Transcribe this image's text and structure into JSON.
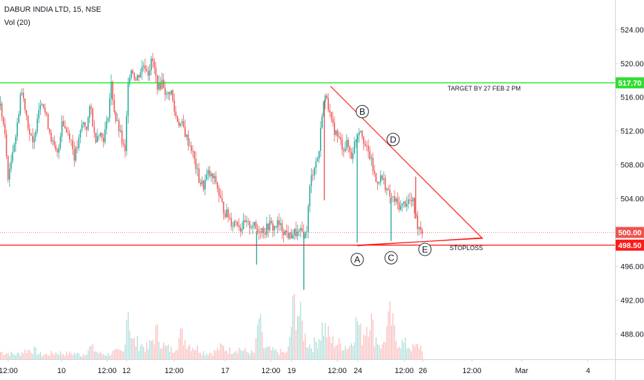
{
  "header": {
    "title": "DABUR INDIA LTD, 15, NSE",
    "volume_label": "Vol (20)"
  },
  "colors": {
    "up": "#26a69a",
    "down": "#ef5350",
    "target_line": "#00e600",
    "stoploss_line": "#ff1a1a",
    "triangle": "#ff1a1a",
    "price_tag_bg": "#ef5350",
    "stoploss_tag_bg": "#ff1a1a",
    "target_tag_bg": "#33dd33",
    "axis_text": "#131722",
    "grid_border": "#d1d4dc"
  },
  "chart_data": {
    "type": "candlestick",
    "y_axis": {
      "ticks": [
        488,
        492,
        496,
        500,
        504,
        508,
        512,
        516,
        520,
        524
      ],
      "range": [
        485,
        527.5
      ],
      "tick_labels": [
        "488.00",
        "492.00",
        "496.00",
        "500.00",
        "504.00",
        "508.00",
        "512.00",
        "516.00",
        "520.00",
        "524.00"
      ]
    },
    "x_axis": {
      "tick_labels": [
        "12:00",
        "10",
        "12:00",
        "12",
        "12:00",
        "17",
        "12:00",
        "19",
        "12:00",
        "24",
        "12:00",
        "26",
        "12:00",
        "Mar",
        "4"
      ]
    },
    "price_path": [
      [
        0,
        515
      ],
      [
        4,
        512
      ],
      [
        8,
        506
      ],
      [
        12,
        510
      ],
      [
        16,
        512
      ],
      [
        20,
        517
      ],
      [
        24,
        515
      ],
      [
        28,
        512
      ],
      [
        32,
        510
      ],
      [
        36,
        514
      ],
      [
        40,
        516
      ],
      [
        44,
        514
      ],
      [
        48,
        512
      ],
      [
        52,
        510
      ],
      [
        56,
        509
      ],
      [
        60,
        513.5
      ],
      [
        64,
        512
      ],
      [
        68,
        511.5
      ],
      [
        72,
        509
      ],
      [
        76,
        510.5
      ],
      [
        80,
        513
      ],
      [
        84,
        512.5
      ],
      [
        88,
        515
      ],
      [
        92,
        511
      ],
      [
        96,
        512
      ],
      [
        100,
        511
      ],
      [
        104,
        513
      ],
      [
        108,
        517.5
      ],
      [
        112,
        513.5
      ],
      [
        116,
        512
      ],
      [
        120,
        510
      ],
      [
        122,
        509
      ],
      [
        124,
        518
      ],
      [
        128,
        519.5
      ],
      [
        132,
        518
      ],
      [
        136,
        519
      ],
      [
        140,
        520
      ],
      [
        144,
        519
      ],
      [
        148,
        520.5
      ],
      [
        152,
        518
      ],
      [
        154,
        517
      ],
      [
        158,
        518
      ],
      [
        162,
        516
      ],
      [
        166,
        517
      ],
      [
        170,
        514
      ],
      [
        174,
        513
      ],
      [
        178,
        512.5
      ],
      [
        182,
        511
      ],
      [
        186,
        510
      ],
      [
        190,
        508
      ],
      [
        194,
        506
      ],
      [
        198,
        505.5
      ],
      [
        202,
        507
      ],
      [
        206,
        506.5
      ],
      [
        210,
        506
      ],
      [
        214,
        504
      ],
      [
        218,
        502.5
      ],
      [
        222,
        502
      ],
      [
        226,
        501
      ],
      [
        230,
        501.5
      ],
      [
        234,
        500.5
      ],
      [
        238,
        501
      ],
      [
        242,
        500.8
      ],
      [
        246,
        501
      ],
      [
        250,
        500.2
      ],
      [
        254,
        500.5
      ],
      [
        258,
        500.2
      ],
      [
        262,
        501
      ],
      [
        266,
        500.5
      ],
      [
        270,
        501
      ],
      [
        274,
        500.5
      ],
      [
        278,
        500
      ],
      [
        282,
        499.5
      ],
      [
        286,
        500
      ],
      [
        290,
        499.8
      ],
      [
        294,
        500
      ],
      [
        296,
        499.8
      ],
      [
        298,
        499.7
      ],
      [
        302,
        506
      ],
      [
        306,
        508
      ],
      [
        310,
        509
      ],
      [
        314,
        515
      ],
      [
        318,
        516.3
      ],
      [
        322,
        513
      ],
      [
        326,
        512
      ],
      [
        330,
        511
      ],
      [
        334,
        510
      ],
      [
        338,
        510.5
      ],
      [
        342,
        509
      ],
      [
        346,
        511
      ],
      [
        350,
        512.5
      ],
      [
        352,
        512
      ],
      [
        356,
        510
      ],
      [
        360,
        509
      ],
      [
        364,
        507
      ],
      [
        366,
        506
      ],
      [
        370,
        506.5
      ],
      [
        374,
        506
      ],
      [
        378,
        504.5
      ],
      [
        382,
        504
      ],
      [
        386,
        503.5
      ],
      [
        390,
        503
      ],
      [
        394,
        503.5
      ],
      [
        398,
        503.8
      ],
      [
        402,
        503.5
      ],
      [
        406,
        501
      ],
      [
        410,
        500.5
      ],
      [
        412,
        500
      ]
    ],
    "volume": [
      [
        0,
        0.12
      ],
      [
        8,
        0.1
      ],
      [
        16,
        0.08
      ],
      [
        24,
        0.14
      ],
      [
        32,
        0.16
      ],
      [
        40,
        0.07
      ],
      [
        48,
        0.09
      ],
      [
        56,
        0.11
      ],
      [
        64,
        0.09
      ],
      [
        72,
        0.1
      ],
      [
        80,
        0.07
      ],
      [
        88,
        0.2
      ],
      [
        96,
        0.1
      ],
      [
        104,
        0.08
      ],
      [
        112,
        0.12
      ],
      [
        120,
        0.12
      ],
      [
        124,
        1.0
      ],
      [
        128,
        0.3
      ],
      [
        136,
        0.25
      ],
      [
        144,
        0.18
      ],
      [
        152,
        0.45
      ],
      [
        160,
        0.2
      ],
      [
        168,
        0.15
      ],
      [
        176,
        0.4
      ],
      [
        184,
        0.25
      ],
      [
        192,
        0.18
      ],
      [
        200,
        0.1
      ],
      [
        208,
        0.12
      ],
      [
        216,
        0.2
      ],
      [
        224,
        0.14
      ],
      [
        232,
        0.18
      ],
      [
        240,
        0.12
      ],
      [
        248,
        0.1
      ],
      [
        252,
        0.7
      ],
      [
        256,
        0.2
      ],
      [
        264,
        0.14
      ],
      [
        272,
        0.12
      ],
      [
        280,
        0.1
      ],
      [
        286,
        0.9
      ],
      [
        290,
        0.8
      ],
      [
        294,
        0.55
      ],
      [
        298,
        0.3
      ],
      [
        304,
        0.2
      ],
      [
        310,
        0.35
      ],
      [
        314,
        0.55
      ],
      [
        318,
        0.45
      ],
      [
        322,
        0.3
      ],
      [
        330,
        0.25
      ],
      [
        340,
        0.2
      ],
      [
        348,
        0.65
      ],
      [
        352,
        0.35
      ],
      [
        360,
        0.75
      ],
      [
        364,
        0.4
      ],
      [
        372,
        0.2
      ],
      [
        380,
        0.7
      ],
      [
        386,
        0.3
      ],
      [
        394,
        0.25
      ],
      [
        402,
        0.18
      ],
      [
        408,
        0.22
      ],
      [
        412,
        0.2
      ]
    ],
    "horizontal_lines": [
      {
        "name": "target",
        "value": 517.7
      },
      {
        "name": "current",
        "value": 500.0
      },
      {
        "name": "stoploss",
        "value": 498.5
      }
    ],
    "triangle": {
      "apex_index": 322,
      "apex_value": 517.3,
      "right_index": 470,
      "right_value": 499.3,
      "base_index": 348,
      "base_value": 498.5
    },
    "points": [
      {
        "label": "A",
        "index": 348,
        "value": 496.8
      },
      {
        "label": "B",
        "index": 353,
        "value": 514.3
      },
      {
        "label": "C",
        "index": 381,
        "value": 497.0
      },
      {
        "label": "D",
        "index": 383,
        "value": 511.0
      },
      {
        "label": "E",
        "index": 414,
        "value": 498.0
      }
    ],
    "annotations": [
      {
        "text": "TARGET BY 27 FEB 2 PM",
        "index": 436,
        "value": 516.8
      },
      {
        "text": "STOPLOSS",
        "index": 438,
        "value": 497.9
      }
    ],
    "price_tags": [
      {
        "text": "517.70",
        "value": 517.7,
        "kind": "target"
      },
      {
        "text": "500.00",
        "value": 500.0,
        "kind": "current"
      },
      {
        "text": "498.50",
        "value": 498.5,
        "kind": "stoploss"
      }
    ]
  }
}
